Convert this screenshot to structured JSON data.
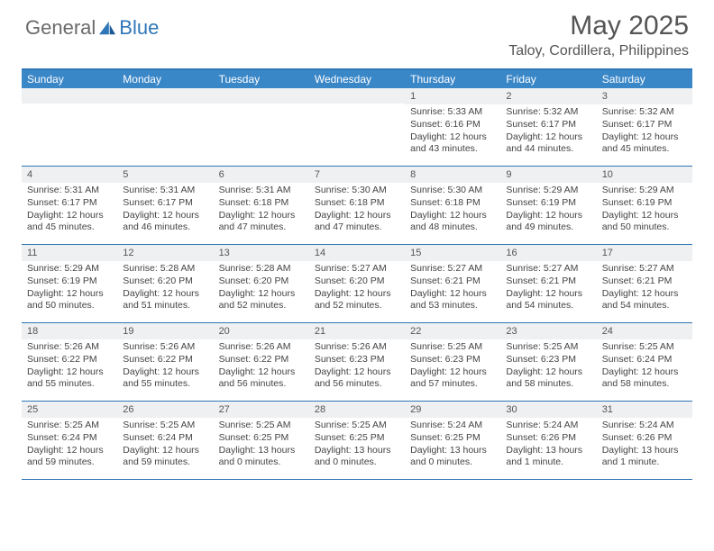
{
  "brand": {
    "part1": "General",
    "part2": "Blue"
  },
  "title": "May 2025",
  "location": "Taloy, Cordillera, Philippines",
  "colors": {
    "header_bar": "#3a87c8",
    "border": "#2f76b8",
    "daynum_bg": "#eef0f2",
    "text": "#444444",
    "title_text": "#555555"
  },
  "dow": [
    "Sunday",
    "Monday",
    "Tuesday",
    "Wednesday",
    "Thursday",
    "Friday",
    "Saturday"
  ],
  "weeks": [
    [
      {
        "n": "",
        "sr": "",
        "ss": "",
        "dl": ""
      },
      {
        "n": "",
        "sr": "",
        "ss": "",
        "dl": ""
      },
      {
        "n": "",
        "sr": "",
        "ss": "",
        "dl": ""
      },
      {
        "n": "",
        "sr": "",
        "ss": "",
        "dl": ""
      },
      {
        "n": "1",
        "sr": "Sunrise: 5:33 AM",
        "ss": "Sunset: 6:16 PM",
        "dl": "Daylight: 12 hours and 43 minutes."
      },
      {
        "n": "2",
        "sr": "Sunrise: 5:32 AM",
        "ss": "Sunset: 6:17 PM",
        "dl": "Daylight: 12 hours and 44 minutes."
      },
      {
        "n": "3",
        "sr": "Sunrise: 5:32 AM",
        "ss": "Sunset: 6:17 PM",
        "dl": "Daylight: 12 hours and 45 minutes."
      }
    ],
    [
      {
        "n": "4",
        "sr": "Sunrise: 5:31 AM",
        "ss": "Sunset: 6:17 PM",
        "dl": "Daylight: 12 hours and 45 minutes."
      },
      {
        "n": "5",
        "sr": "Sunrise: 5:31 AM",
        "ss": "Sunset: 6:17 PM",
        "dl": "Daylight: 12 hours and 46 minutes."
      },
      {
        "n": "6",
        "sr": "Sunrise: 5:31 AM",
        "ss": "Sunset: 6:18 PM",
        "dl": "Daylight: 12 hours and 47 minutes."
      },
      {
        "n": "7",
        "sr": "Sunrise: 5:30 AM",
        "ss": "Sunset: 6:18 PM",
        "dl": "Daylight: 12 hours and 47 minutes."
      },
      {
        "n": "8",
        "sr": "Sunrise: 5:30 AM",
        "ss": "Sunset: 6:18 PM",
        "dl": "Daylight: 12 hours and 48 minutes."
      },
      {
        "n": "9",
        "sr": "Sunrise: 5:29 AM",
        "ss": "Sunset: 6:19 PM",
        "dl": "Daylight: 12 hours and 49 minutes."
      },
      {
        "n": "10",
        "sr": "Sunrise: 5:29 AM",
        "ss": "Sunset: 6:19 PM",
        "dl": "Daylight: 12 hours and 50 minutes."
      }
    ],
    [
      {
        "n": "11",
        "sr": "Sunrise: 5:29 AM",
        "ss": "Sunset: 6:19 PM",
        "dl": "Daylight: 12 hours and 50 minutes."
      },
      {
        "n": "12",
        "sr": "Sunrise: 5:28 AM",
        "ss": "Sunset: 6:20 PM",
        "dl": "Daylight: 12 hours and 51 minutes."
      },
      {
        "n": "13",
        "sr": "Sunrise: 5:28 AM",
        "ss": "Sunset: 6:20 PM",
        "dl": "Daylight: 12 hours and 52 minutes."
      },
      {
        "n": "14",
        "sr": "Sunrise: 5:27 AM",
        "ss": "Sunset: 6:20 PM",
        "dl": "Daylight: 12 hours and 52 minutes."
      },
      {
        "n": "15",
        "sr": "Sunrise: 5:27 AM",
        "ss": "Sunset: 6:21 PM",
        "dl": "Daylight: 12 hours and 53 minutes."
      },
      {
        "n": "16",
        "sr": "Sunrise: 5:27 AM",
        "ss": "Sunset: 6:21 PM",
        "dl": "Daylight: 12 hours and 54 minutes."
      },
      {
        "n": "17",
        "sr": "Sunrise: 5:27 AM",
        "ss": "Sunset: 6:21 PM",
        "dl": "Daylight: 12 hours and 54 minutes."
      }
    ],
    [
      {
        "n": "18",
        "sr": "Sunrise: 5:26 AM",
        "ss": "Sunset: 6:22 PM",
        "dl": "Daylight: 12 hours and 55 minutes."
      },
      {
        "n": "19",
        "sr": "Sunrise: 5:26 AM",
        "ss": "Sunset: 6:22 PM",
        "dl": "Daylight: 12 hours and 55 minutes."
      },
      {
        "n": "20",
        "sr": "Sunrise: 5:26 AM",
        "ss": "Sunset: 6:22 PM",
        "dl": "Daylight: 12 hours and 56 minutes."
      },
      {
        "n": "21",
        "sr": "Sunrise: 5:26 AM",
        "ss": "Sunset: 6:23 PM",
        "dl": "Daylight: 12 hours and 56 minutes."
      },
      {
        "n": "22",
        "sr": "Sunrise: 5:25 AM",
        "ss": "Sunset: 6:23 PM",
        "dl": "Daylight: 12 hours and 57 minutes."
      },
      {
        "n": "23",
        "sr": "Sunrise: 5:25 AM",
        "ss": "Sunset: 6:23 PM",
        "dl": "Daylight: 12 hours and 58 minutes."
      },
      {
        "n": "24",
        "sr": "Sunrise: 5:25 AM",
        "ss": "Sunset: 6:24 PM",
        "dl": "Daylight: 12 hours and 58 minutes."
      }
    ],
    [
      {
        "n": "25",
        "sr": "Sunrise: 5:25 AM",
        "ss": "Sunset: 6:24 PM",
        "dl": "Daylight: 12 hours and 59 minutes."
      },
      {
        "n": "26",
        "sr": "Sunrise: 5:25 AM",
        "ss": "Sunset: 6:24 PM",
        "dl": "Daylight: 12 hours and 59 minutes."
      },
      {
        "n": "27",
        "sr": "Sunrise: 5:25 AM",
        "ss": "Sunset: 6:25 PM",
        "dl": "Daylight: 13 hours and 0 minutes."
      },
      {
        "n": "28",
        "sr": "Sunrise: 5:25 AM",
        "ss": "Sunset: 6:25 PM",
        "dl": "Daylight: 13 hours and 0 minutes."
      },
      {
        "n": "29",
        "sr": "Sunrise: 5:24 AM",
        "ss": "Sunset: 6:25 PM",
        "dl": "Daylight: 13 hours and 0 minutes."
      },
      {
        "n": "30",
        "sr": "Sunrise: 5:24 AM",
        "ss": "Sunset: 6:26 PM",
        "dl": "Daylight: 13 hours and 1 minute."
      },
      {
        "n": "31",
        "sr": "Sunrise: 5:24 AM",
        "ss": "Sunset: 6:26 PM",
        "dl": "Daylight: 13 hours and 1 minute."
      }
    ]
  ]
}
